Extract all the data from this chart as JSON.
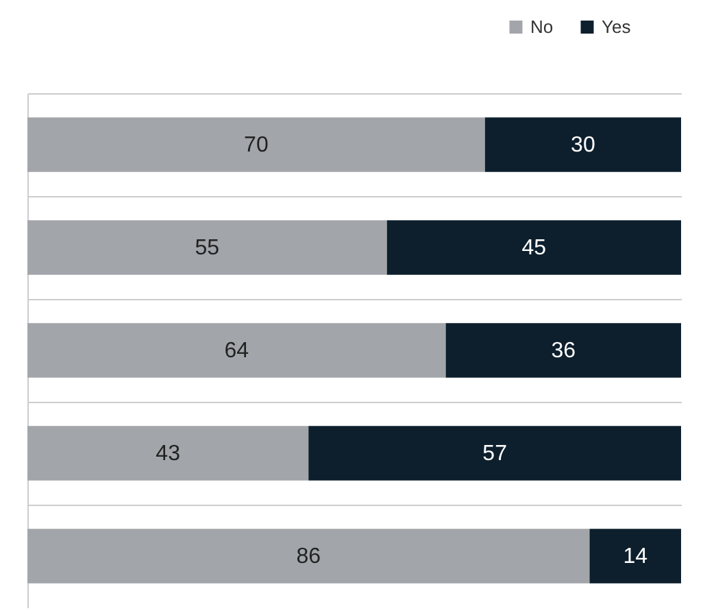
{
  "chart_data": {
    "type": "bar",
    "orientation": "horizontal",
    "stacked": true,
    "categories": [
      null,
      null,
      null,
      null,
      null
    ],
    "series": [
      {
        "name": "No",
        "color": "#a2a5a9",
        "values": [
          70,
          55,
          64,
          43,
          86
        ]
      },
      {
        "name": "Yes",
        "color": "#0d1f2d",
        "values": [
          30,
          45,
          36,
          57,
          14
        ]
      }
    ],
    "xlim": [
      0,
      100
    ],
    "data_labels": true,
    "grid": "y",
    "legend": "top right"
  }
}
